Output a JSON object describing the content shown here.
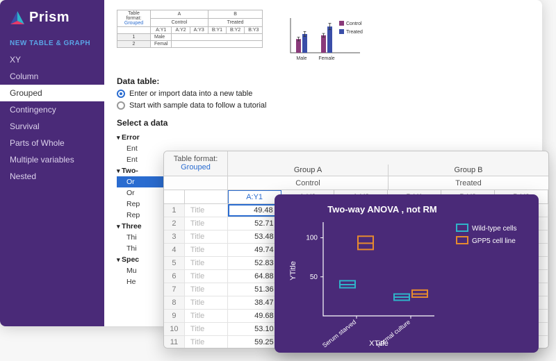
{
  "brand": {
    "name": "Prism"
  },
  "sidebar": {
    "section": "NEW TABLE & GRAPH",
    "items": [
      "XY",
      "Column",
      "Grouped",
      "Contingency",
      "Survival",
      "Parts of Whole",
      "Multiple variables",
      "Nested"
    ],
    "selected_index": 2
  },
  "preview_table": {
    "format_label": "Table format:",
    "format_value": "Grouped",
    "groups": [
      "A",
      "B"
    ],
    "treatments": [
      "Control",
      "Treated"
    ],
    "subcols": [
      "A:Y1",
      "A:Y2",
      "A:Y3",
      "B:Y1",
      "B:Y2",
      "B:Y3"
    ],
    "rows": [
      "Male",
      "Femal"
    ]
  },
  "preview_chart": {
    "type": "bar",
    "categories": [
      "Male",
      "Female"
    ],
    "series": [
      {
        "name": "Control",
        "color": "#8a3a7a",
        "values": [
          22,
          28
        ],
        "errors": [
          3,
          3
        ]
      },
      {
        "name": "Treated",
        "color": "#3a4ea8",
        "values": [
          30,
          42
        ],
        "errors": [
          4,
          5
        ]
      }
    ],
    "ymax": 50
  },
  "data_table_section": {
    "heading": "Data table:",
    "radio1": "Enter or import data into a new table",
    "radio2": "Start with sample data to follow a tutorial",
    "select_label": "Select a data"
  },
  "tree": {
    "groups": [
      {
        "label": "Error",
        "items": [
          "Ent",
          "Ent"
        ]
      },
      {
        "label": "Two-",
        "items": [
          "Or",
          "Or",
          "Rep",
          "Rep"
        ],
        "selected_index": 0
      },
      {
        "label": "Three",
        "items": [
          "Thi",
          "Thi"
        ]
      },
      {
        "label": "Spec",
        "items": [
          "Mu",
          "He"
        ]
      }
    ]
  },
  "data_table": {
    "format_label": "Table format:",
    "format_value": "Grouped",
    "groups": [
      {
        "id": "Group A",
        "name": "Control",
        "cols": [
          "A:Y1",
          "A:Y2",
          "A:Y3"
        ]
      },
      {
        "id": "Group B",
        "name": "Treated",
        "cols": [
          "B:Y1",
          "B:Y2",
          "B:Y3"
        ]
      }
    ],
    "row_label": "Title",
    "active_col": "A:Y1",
    "selected_row": 0,
    "rows": [
      49.48,
      52.71,
      53.48,
      49.74,
      52.83,
      64.88,
      51.36,
      38.47,
      49.68,
      53.1,
      59.25
    ]
  },
  "anova_chart": {
    "title": "Two-way ANOVA , not RM",
    "xlabel": "XTitle",
    "ylabel": "YTitle",
    "background_color": "#4a2a78",
    "legend": [
      {
        "name": "Wild-type cells",
        "color": "#2fb3c9"
      },
      {
        "name": "GPP5 cell line",
        "color": "#e68a2e"
      }
    ],
    "categories": [
      "Serum starved",
      "Normal culture"
    ],
    "series": [
      {
        "color": "#2fb3c9",
        "lows": [
          36,
          20
        ],
        "highs": [
          45,
          28
        ],
        "mids": [
          40,
          24
        ]
      },
      {
        "color": "#e68a2e",
        "lows": [
          85,
          24
        ],
        "highs": [
          102,
          33
        ],
        "mids": [
          93,
          28
        ]
      }
    ],
    "yticks": [
      50,
      100
    ],
    "ymax": 120
  }
}
